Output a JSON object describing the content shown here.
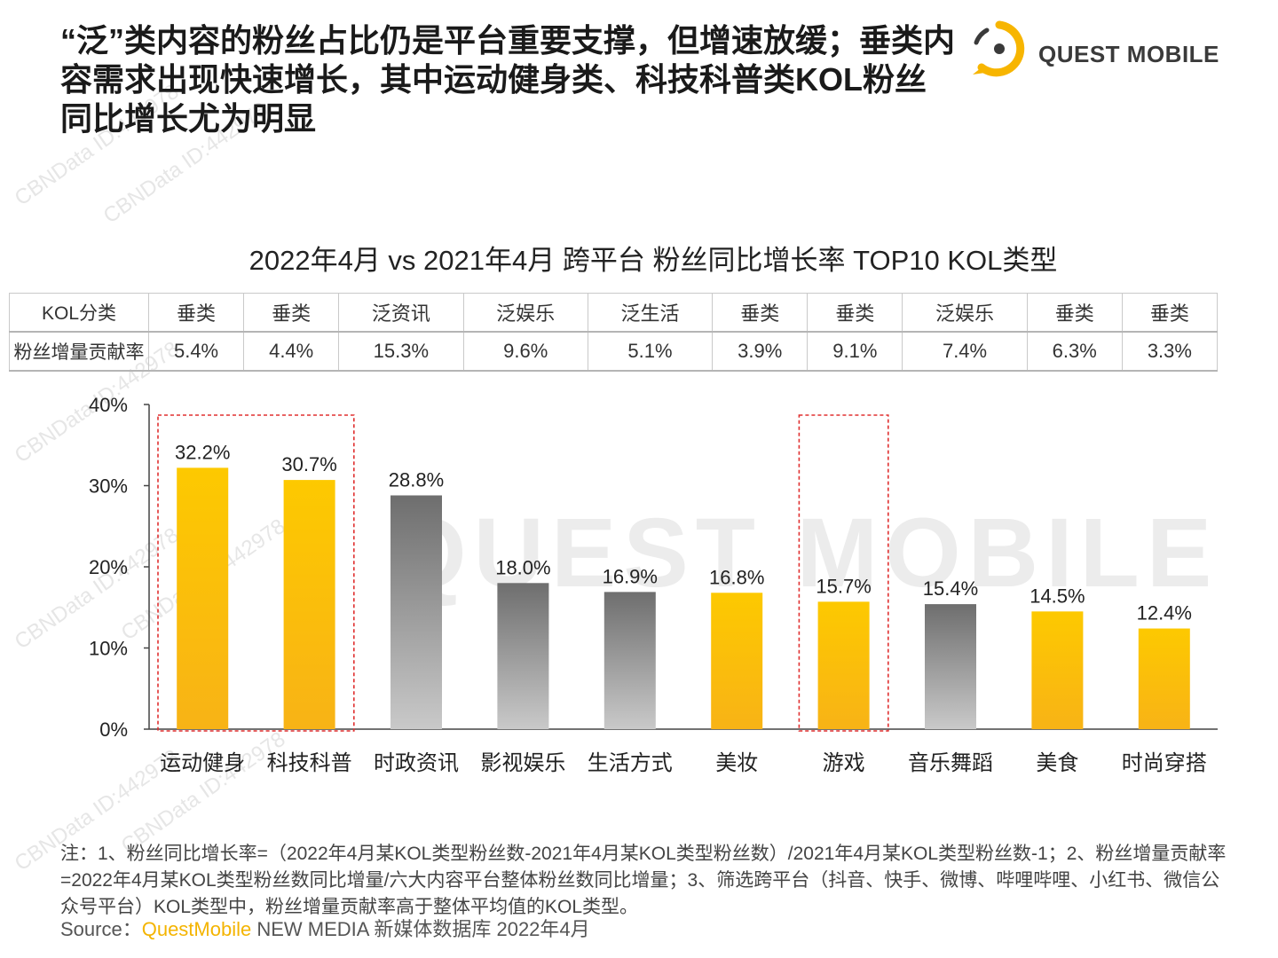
{
  "headline": "“泛”类内容的粉丝占比仍是平台重要支撑，但增速放缓；垂类内容需求出现快速增长，其中运动健身类、科技科普类KOL粉丝同比增长尤为明显",
  "logo": {
    "text": "QUEST MOBILE"
  },
  "watermark": {
    "text": "QUEST MOBILE",
    "tag": "CBNData ID:442978"
  },
  "table": {
    "row1_label": "KOL分类",
    "row2_label": "粉丝增量贡献率",
    "types": [
      "垂类",
      "垂类",
      "泛资讯",
      "泛娱乐",
      "泛生活",
      "垂类",
      "垂类",
      "泛娱乐",
      "垂类",
      "垂类"
    ],
    "contributions": [
      "5.4%",
      "4.4%",
      "15.3%",
      "9.6%",
      "5.1%",
      "3.9%",
      "9.1%",
      "7.4%",
      "6.3%",
      "3.3%"
    ]
  },
  "chart_data": {
    "type": "bar",
    "title": "2022年4月 vs 2021年4月 跨平台 粉丝同比增长率 TOP10 KOL类型",
    "categories": [
      "运动健身",
      "科技科普",
      "时政资讯",
      "影视娱乐",
      "生活方式",
      "美妆",
      "游戏",
      "音乐舞蹈",
      "美食",
      "时尚穿搭"
    ],
    "values": [
      32.2,
      30.7,
      28.8,
      18.0,
      16.9,
      16.8,
      15.7,
      15.4,
      14.5,
      12.4
    ],
    "value_labels": [
      "32.2%",
      "30.7%",
      "28.8%",
      "18.0%",
      "16.9%",
      "16.8%",
      "15.7%",
      "15.4%",
      "14.5%",
      "12.4%"
    ],
    "bar_colors": [
      "#fbc000",
      "#fbc000",
      "#777777",
      "#777777",
      "#777777",
      "#fbc000",
      "#fbc000",
      "#777777",
      "#fbc000",
      "#fbc000"
    ],
    "ytick_labels": [
      "0%",
      "10%",
      "20%",
      "30%",
      "40%"
    ],
    "ylim": [
      0,
      40
    ],
    "grid": false,
    "highlighted_categories": [
      "运动健身",
      "科技科普",
      "游戏"
    ],
    "colors": {
      "vertical": "#fbc000",
      "general": "#777777",
      "highlight_box": "#e03030"
    }
  },
  "note": "注：1、粉丝同比增长率=（2022年4月某KOL类型粉丝数-2021年4月某KOL类型粉丝数）/2021年4月某KOL类型粉丝数-1；2、粉丝增量贡献率=2022年4月某KOL类型粉丝数同比增量/六大内容平台整体粉丝数同比增量；3、筛选跨平台（抖音、快手、微博、哔哩哔哩、小红书、微信公众号平台）KOL类型中，粉丝增量贡献率高于整体平均值的KOL类型。",
  "source": {
    "prefix": "Source：",
    "brand": "QuestMobile",
    "rest": " NEW MEDIA 新媒体数据库 2022年4月"
  }
}
